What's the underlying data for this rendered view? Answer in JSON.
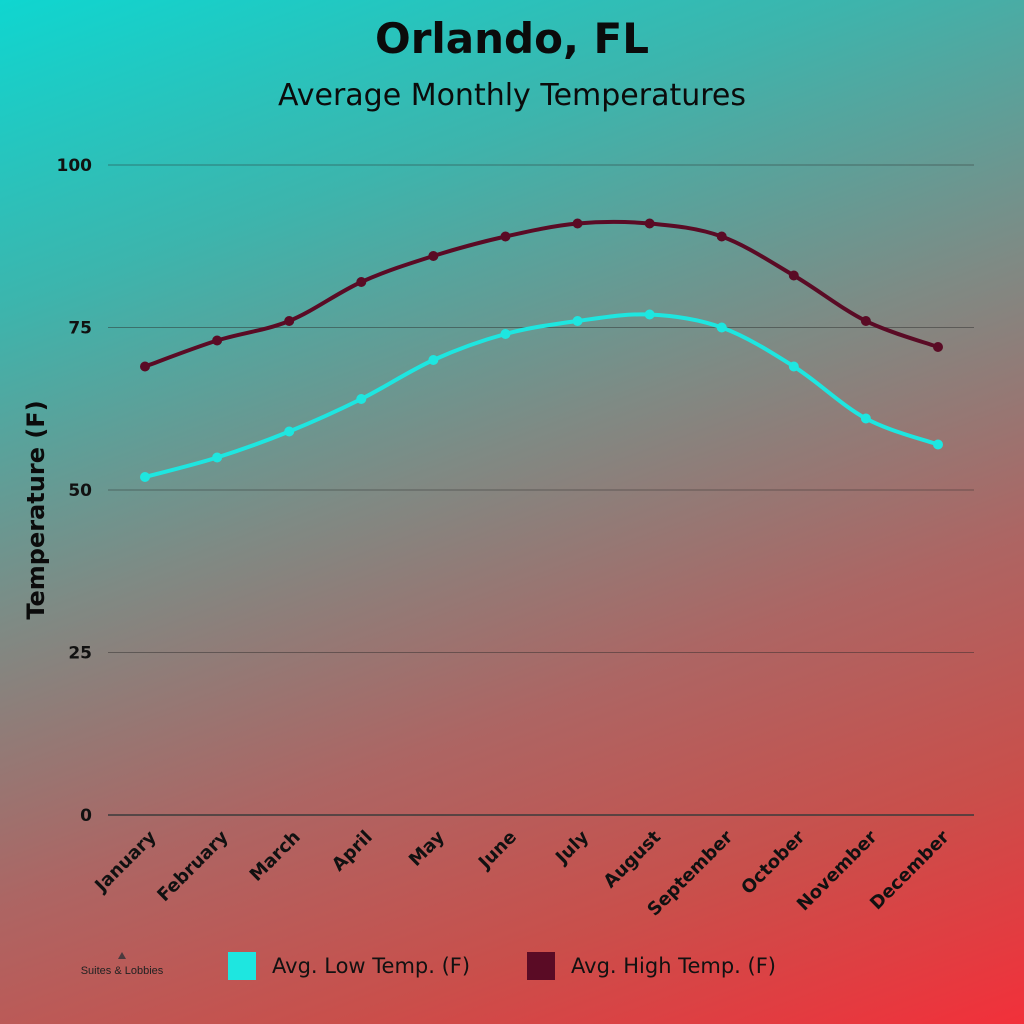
{
  "brand": {
    "name": "Suites & Lobbies"
  },
  "chart_data": {
    "type": "line",
    "title": "Orlando, FL",
    "subtitle": "Average Monthly Temperatures",
    "xlabel": "",
    "ylabel": "Temperature (F)",
    "ylim": [
      0,
      100
    ],
    "yticks": [
      0,
      25,
      50,
      75,
      100
    ],
    "grid": true,
    "legend_position": "bottom",
    "categories": [
      "January",
      "February",
      "March",
      "April",
      "May",
      "June",
      "July",
      "August",
      "September",
      "October",
      "November",
      "December"
    ],
    "series": [
      {
        "name": "Avg. Low Temp. (F)",
        "color": "#1ee6e0",
        "values": [
          52,
          55,
          59,
          64,
          70,
          74,
          76,
          77,
          75,
          69,
          61,
          57
        ]
      },
      {
        "name": "Avg. High Temp. (F)",
        "color": "#5a0b25",
        "values": [
          69,
          73,
          76,
          82,
          86,
          89,
          91,
          91,
          89,
          83,
          76,
          72
        ]
      }
    ]
  }
}
